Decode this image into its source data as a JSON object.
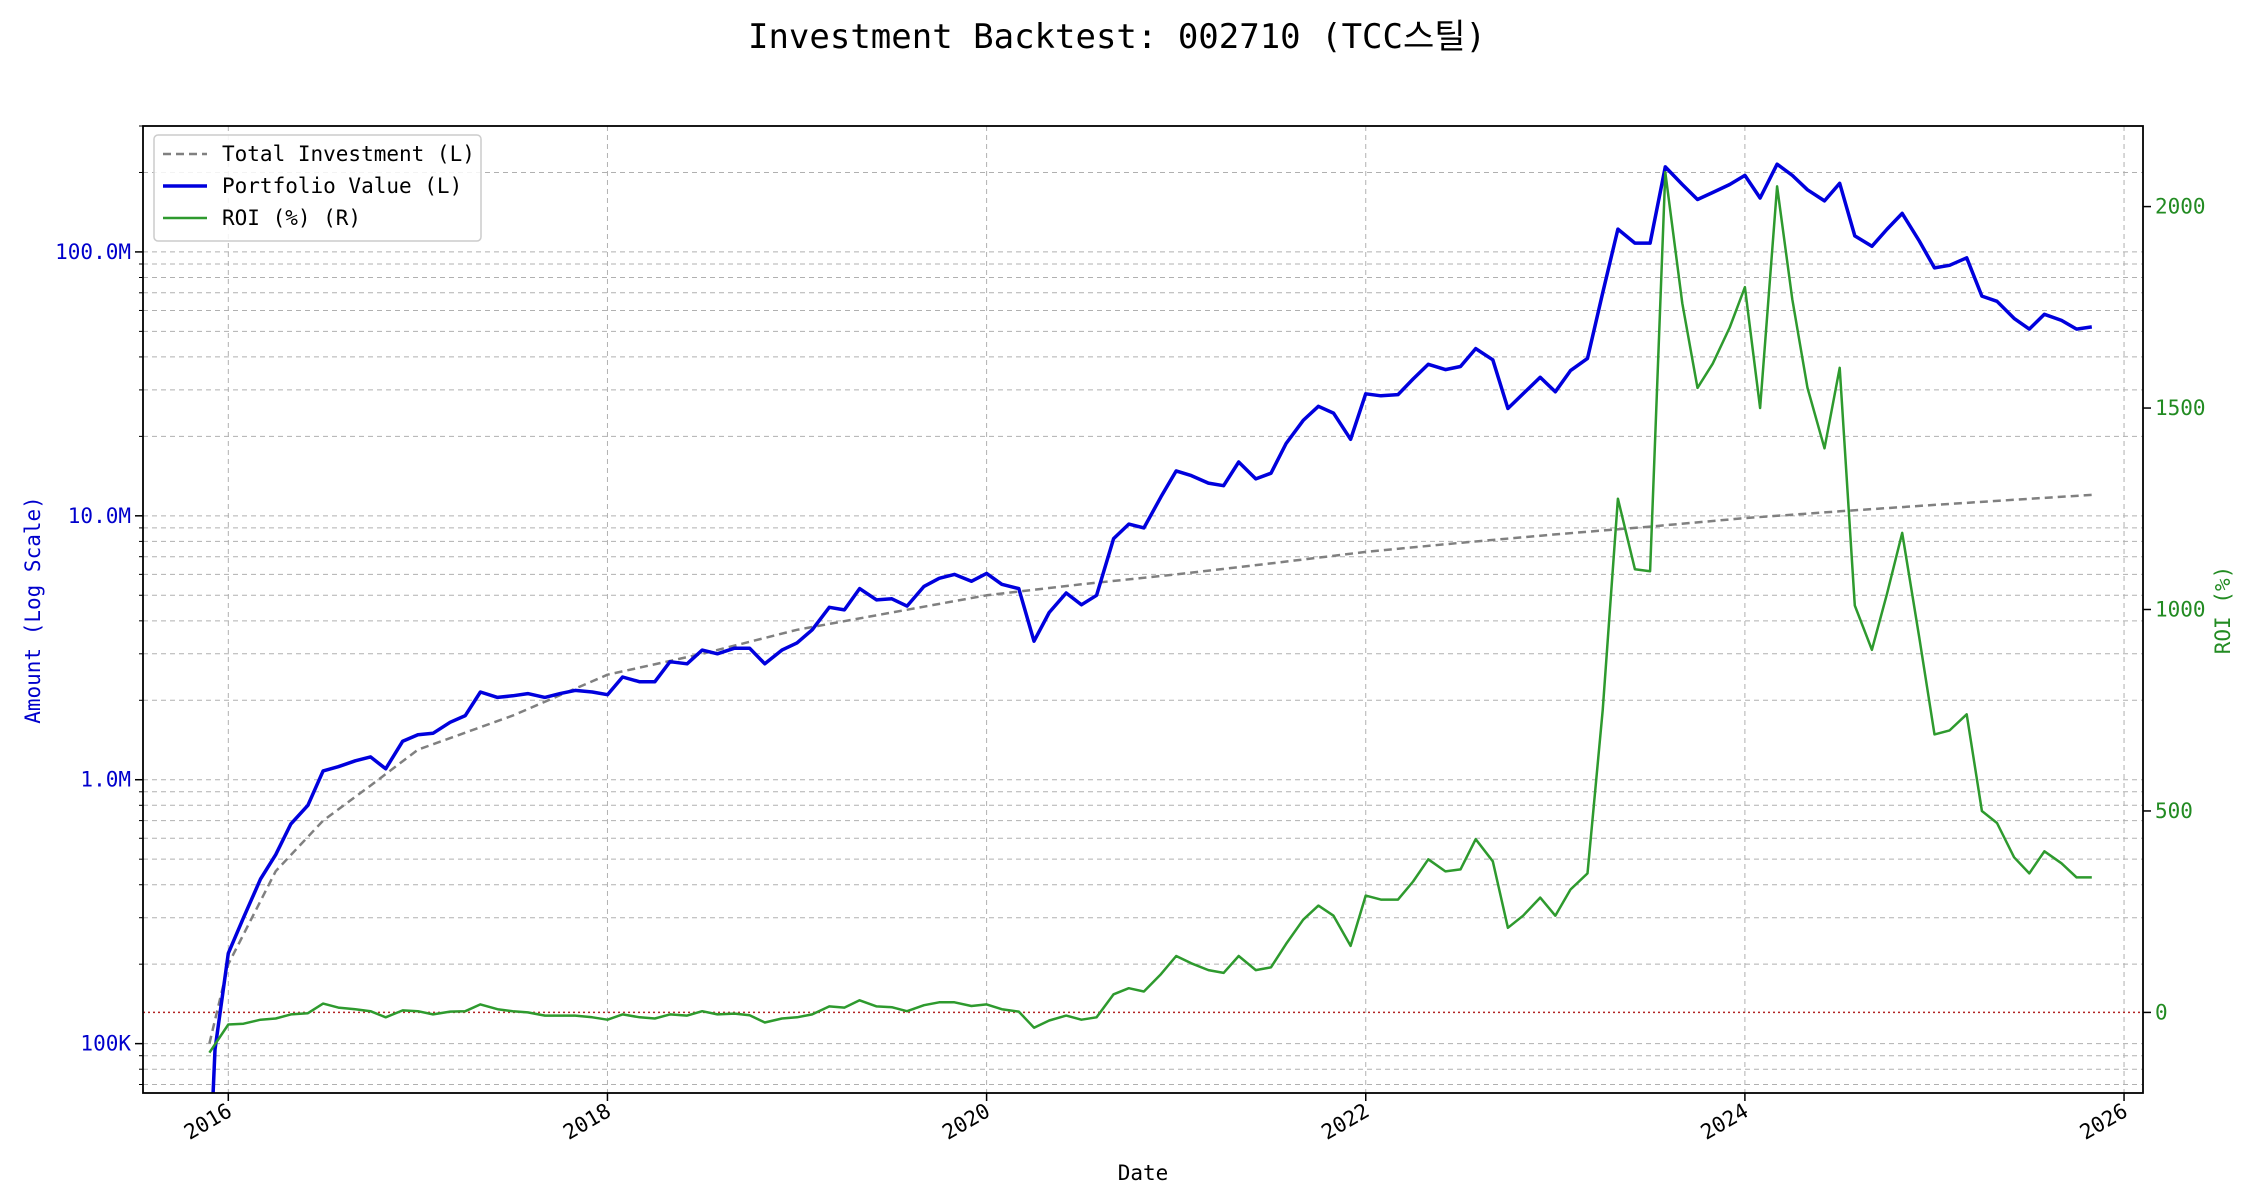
{
  "chart_data": {
    "type": "line",
    "title": "Investment Backtest: 002710 (TCC스틸)",
    "xlabel": "Date",
    "ylabel_left": "Amount (Log Scale)",
    "ylabel_right": "ROI (%)",
    "left_scale": "log",
    "xlim": [
      2015.55,
      2026.1
    ],
    "ylim_left": [
      65000,
      300000000
    ],
    "ylim_right": [
      -200,
      2200
    ],
    "grid": true,
    "legend_position": "top-left",
    "x_ticks": [
      {
        "value": 2016,
        "label": "2016"
      },
      {
        "value": 2018,
        "label": "2018"
      },
      {
        "value": 2020,
        "label": "2020"
      },
      {
        "value": 2022,
        "label": "2022"
      },
      {
        "value": 2024,
        "label": "2024"
      },
      {
        "value": 2026,
        "label": "2026"
      }
    ],
    "left_ticks": [
      {
        "value": 100000,
        "label": "100K"
      },
      {
        "value": 1000000,
        "label": "1.0M"
      },
      {
        "value": 10000000,
        "label": "10.0M"
      },
      {
        "value": 100000000,
        "label": "100.0M"
      }
    ],
    "right_ticks": [
      {
        "value": 0,
        "label": "0"
      },
      {
        "value": 500,
        "label": "500"
      },
      {
        "value": 1000,
        "label": "1000"
      },
      {
        "value": 1500,
        "label": "1500"
      },
      {
        "value": 2000,
        "label": "2000"
      }
    ],
    "zero_line": {
      "axis": "right",
      "value": 0,
      "color": "#b22222"
    },
    "colors": {
      "left_axis": "#0000cc",
      "right_axis": "#228b22",
      "total_investment": "#808080",
      "portfolio": "#0000dd",
      "roi": "#2e9a2e"
    },
    "series": [
      {
        "name": "Total Investment (L)",
        "axis": "left",
        "style": "dashed",
        "points": [
          [
            2015.9,
            100000
          ],
          [
            2016.0,
            200000
          ],
          [
            2016.25,
            450000
          ],
          [
            2016.5,
            700000
          ],
          [
            2016.75,
            950000
          ],
          [
            2017.0,
            1300000
          ],
          [
            2017.5,
            1750000
          ],
          [
            2018.0,
            2500000
          ],
          [
            2018.5,
            3000000
          ],
          [
            2019.0,
            3700000
          ],
          [
            2019.5,
            4300000
          ],
          [
            2020.0,
            5000000
          ],
          [
            2020.5,
            5500000
          ],
          [
            2021.0,
            6000000
          ],
          [
            2021.5,
            6600000
          ],
          [
            2022.0,
            7300000
          ],
          [
            2022.5,
            7900000
          ],
          [
            2023.0,
            8500000
          ],
          [
            2023.5,
            9100000
          ],
          [
            2024.0,
            9800000
          ],
          [
            2024.5,
            10400000
          ],
          [
            2025.0,
            11000000
          ],
          [
            2025.5,
            11600000
          ],
          [
            2025.83,
            12000000
          ]
        ]
      },
      {
        "name": "Portfolio Value (L)",
        "axis": "left",
        "style": "solid",
        "points": [
          [
            2015.92,
            65000
          ],
          [
            2015.93,
            95000
          ],
          [
            2016.0,
            220000
          ],
          [
            2016.08,
            300000
          ],
          [
            2016.17,
            420000
          ],
          [
            2016.25,
            520000
          ],
          [
            2016.33,
            680000
          ],
          [
            2016.42,
            800000
          ],
          [
            2016.5,
            1080000
          ],
          [
            2016.58,
            1120000
          ],
          [
            2016.67,
            1180000
          ],
          [
            2016.75,
            1220000
          ],
          [
            2016.83,
            1100000
          ],
          [
            2016.92,
            1400000
          ],
          [
            2017.0,
            1480000
          ],
          [
            2017.08,
            1500000
          ],
          [
            2017.17,
            1650000
          ],
          [
            2017.25,
            1750000
          ],
          [
            2017.33,
            2150000
          ],
          [
            2017.42,
            2050000
          ],
          [
            2017.5,
            2080000
          ],
          [
            2017.58,
            2120000
          ],
          [
            2017.67,
            2050000
          ],
          [
            2017.75,
            2120000
          ],
          [
            2017.83,
            2180000
          ],
          [
            2017.92,
            2150000
          ],
          [
            2018.0,
            2100000
          ],
          [
            2018.08,
            2450000
          ],
          [
            2018.17,
            2350000
          ],
          [
            2018.25,
            2350000
          ],
          [
            2018.33,
            2800000
          ],
          [
            2018.42,
            2750000
          ],
          [
            2018.5,
            3100000
          ],
          [
            2018.58,
            3000000
          ],
          [
            2018.67,
            3150000
          ],
          [
            2018.75,
            3150000
          ],
          [
            2018.83,
            2750000
          ],
          [
            2018.92,
            3100000
          ],
          [
            2019.0,
            3300000
          ],
          [
            2019.08,
            3700000
          ],
          [
            2019.17,
            4500000
          ],
          [
            2019.25,
            4400000
          ],
          [
            2019.33,
            5300000
          ],
          [
            2019.42,
            4800000
          ],
          [
            2019.5,
            4850000
          ],
          [
            2019.58,
            4550000
          ],
          [
            2019.67,
            5400000
          ],
          [
            2019.75,
            5800000
          ],
          [
            2019.83,
            6000000
          ],
          [
            2019.92,
            5650000
          ],
          [
            2020.0,
            6050000
          ],
          [
            2020.08,
            5500000
          ],
          [
            2020.17,
            5300000
          ],
          [
            2020.25,
            3350000
          ],
          [
            2020.33,
            4300000
          ],
          [
            2020.42,
            5100000
          ],
          [
            2020.5,
            4600000
          ],
          [
            2020.58,
            5000000
          ],
          [
            2020.67,
            8200000
          ],
          [
            2020.75,
            9300000
          ],
          [
            2020.83,
            9000000
          ],
          [
            2020.92,
            11800000
          ],
          [
            2021.0,
            14800000
          ],
          [
            2021.08,
            14200000
          ],
          [
            2021.17,
            13300000
          ],
          [
            2021.25,
            13000000
          ],
          [
            2021.33,
            16000000
          ],
          [
            2021.42,
            13800000
          ],
          [
            2021.5,
            14500000
          ],
          [
            2021.58,
            18800000
          ],
          [
            2021.67,
            23000000
          ],
          [
            2021.75,
            26000000
          ],
          [
            2021.83,
            24500000
          ],
          [
            2021.92,
            19500000
          ],
          [
            2022.0,
            29000000
          ],
          [
            2022.08,
            28500000
          ],
          [
            2022.17,
            28800000
          ],
          [
            2022.25,
            33000000
          ],
          [
            2022.33,
            37500000
          ],
          [
            2022.42,
            35800000
          ],
          [
            2022.5,
            36800000
          ],
          [
            2022.58,
            43000000
          ],
          [
            2022.67,
            39000000
          ],
          [
            2022.75,
            25500000
          ],
          [
            2022.83,
            29000000
          ],
          [
            2022.92,
            33500000
          ],
          [
            2023.0,
            29500000
          ],
          [
            2023.08,
            35500000
          ],
          [
            2023.17,
            39500000
          ],
          [
            2023.25,
            70000000
          ],
          [
            2023.33,
            122000000
          ],
          [
            2023.42,
            108000000
          ],
          [
            2023.5,
            108000000
          ],
          [
            2023.58,
            210000000
          ],
          [
            2023.67,
            180000000
          ],
          [
            2023.75,
            158000000
          ],
          [
            2023.83,
            168000000
          ],
          [
            2023.92,
            180000000
          ],
          [
            2024.0,
            195000000
          ],
          [
            2024.08,
            160000000
          ],
          [
            2024.17,
            215000000
          ],
          [
            2024.25,
            195000000
          ],
          [
            2024.33,
            172000000
          ],
          [
            2024.42,
            156000000
          ],
          [
            2024.5,
            182000000
          ],
          [
            2024.58,
            115000000
          ],
          [
            2024.67,
            105000000
          ],
          [
            2024.75,
            122000000
          ],
          [
            2024.83,
            140000000
          ],
          [
            2024.92,
            110000000
          ],
          [
            2025.0,
            87000000
          ],
          [
            2025.08,
            89000000
          ],
          [
            2025.17,
            95000000
          ],
          [
            2025.25,
            68000000
          ],
          [
            2025.33,
            65000000
          ],
          [
            2025.42,
            56000000
          ],
          [
            2025.5,
            51000000
          ],
          [
            2025.58,
            58000000
          ],
          [
            2025.67,
            55000000
          ],
          [
            2025.75,
            51000000
          ],
          [
            2025.83,
            52000000
          ]
        ]
      },
      {
        "name": "ROI (%) (R)",
        "axis": "right",
        "style": "solid",
        "points": [
          [
            2015.9,
            -100
          ],
          [
            2016.0,
            -30
          ],
          [
            2016.08,
            -28
          ],
          [
            2016.17,
            -18
          ],
          [
            2016.25,
            -15
          ],
          [
            2016.33,
            -5
          ],
          [
            2016.42,
            -2
          ],
          [
            2016.5,
            22
          ],
          [
            2016.58,
            12
          ],
          [
            2016.67,
            8
          ],
          [
            2016.75,
            3
          ],
          [
            2016.83,
            -12
          ],
          [
            2016.92,
            5
          ],
          [
            2017.0,
            3
          ],
          [
            2017.08,
            -5
          ],
          [
            2017.17,
            2
          ],
          [
            2017.25,
            3
          ],
          [
            2017.33,
            20
          ],
          [
            2017.42,
            8
          ],
          [
            2017.5,
            3
          ],
          [
            2017.58,
            0
          ],
          [
            2017.67,
            -8
          ],
          [
            2017.75,
            -8
          ],
          [
            2017.83,
            -8
          ],
          [
            2017.92,
            -12
          ],
          [
            2018.0,
            -18
          ],
          [
            2018.08,
            -5
          ],
          [
            2018.17,
            -12
          ],
          [
            2018.25,
            -15
          ],
          [
            2018.33,
            -5
          ],
          [
            2018.42,
            -8
          ],
          [
            2018.5,
            3
          ],
          [
            2018.58,
            -5
          ],
          [
            2018.67,
            -3
          ],
          [
            2018.75,
            -7
          ],
          [
            2018.83,
            -25
          ],
          [
            2018.92,
            -15
          ],
          [
            2019.0,
            -12
          ],
          [
            2019.08,
            -5
          ],
          [
            2019.17,
            15
          ],
          [
            2019.25,
            12
          ],
          [
            2019.33,
            30
          ],
          [
            2019.42,
            15
          ],
          [
            2019.5,
            13
          ],
          [
            2019.58,
            3
          ],
          [
            2019.67,
            18
          ],
          [
            2019.75,
            25
          ],
          [
            2019.83,
            25
          ],
          [
            2019.92,
            16
          ],
          [
            2020.0,
            20
          ],
          [
            2020.08,
            8
          ],
          [
            2020.17,
            2
          ],
          [
            2020.25,
            -38
          ],
          [
            2020.33,
            -20
          ],
          [
            2020.42,
            -8
          ],
          [
            2020.5,
            -18
          ],
          [
            2020.58,
            -12
          ],
          [
            2020.67,
            45
          ],
          [
            2020.75,
            60
          ],
          [
            2020.83,
            52
          ],
          [
            2020.92,
            95
          ],
          [
            2021.0,
            140
          ],
          [
            2021.08,
            122
          ],
          [
            2021.17,
            105
          ],
          [
            2021.25,
            98
          ],
          [
            2021.33,
            140
          ],
          [
            2021.42,
            105
          ],
          [
            2021.5,
            112
          ],
          [
            2021.58,
            170
          ],
          [
            2021.67,
            230
          ],
          [
            2021.75,
            265
          ],
          [
            2021.83,
            240
          ],
          [
            2021.92,
            165
          ],
          [
            2022.0,
            290
          ],
          [
            2022.08,
            280
          ],
          [
            2022.17,
            280
          ],
          [
            2022.25,
            325
          ],
          [
            2022.33,
            380
          ],
          [
            2022.42,
            350
          ],
          [
            2022.5,
            355
          ],
          [
            2022.58,
            430
          ],
          [
            2022.67,
            375
          ],
          [
            2022.75,
            210
          ],
          [
            2022.83,
            240
          ],
          [
            2022.92,
            285
          ],
          [
            2023.0,
            240
          ],
          [
            2023.08,
            305
          ],
          [
            2023.17,
            345
          ],
          [
            2023.25,
            750
          ],
          [
            2023.33,
            1275
          ],
          [
            2023.42,
            1100
          ],
          [
            2023.5,
            1095
          ],
          [
            2023.58,
            2085
          ],
          [
            2023.67,
            1760
          ],
          [
            2023.75,
            1550
          ],
          [
            2023.83,
            1610
          ],
          [
            2023.92,
            1700
          ],
          [
            2024.0,
            1800
          ],
          [
            2024.08,
            1500
          ],
          [
            2024.17,
            2050
          ],
          [
            2024.25,
            1770
          ],
          [
            2024.33,
            1550
          ],
          [
            2024.42,
            1400
          ],
          [
            2024.5,
            1600
          ],
          [
            2024.58,
            1010
          ],
          [
            2024.67,
            900
          ],
          [
            2024.75,
            1040
          ],
          [
            2024.83,
            1190
          ],
          [
            2024.92,
            930
          ],
          [
            2025.0,
            690
          ],
          [
            2025.08,
            700
          ],
          [
            2025.17,
            740
          ],
          [
            2025.25,
            500
          ],
          [
            2025.33,
            470
          ],
          [
            2025.42,
            385
          ],
          [
            2025.5,
            345
          ],
          [
            2025.58,
            400
          ],
          [
            2025.67,
            370
          ],
          [
            2025.75,
            335
          ],
          [
            2025.83,
            335
          ]
        ]
      }
    ]
  }
}
